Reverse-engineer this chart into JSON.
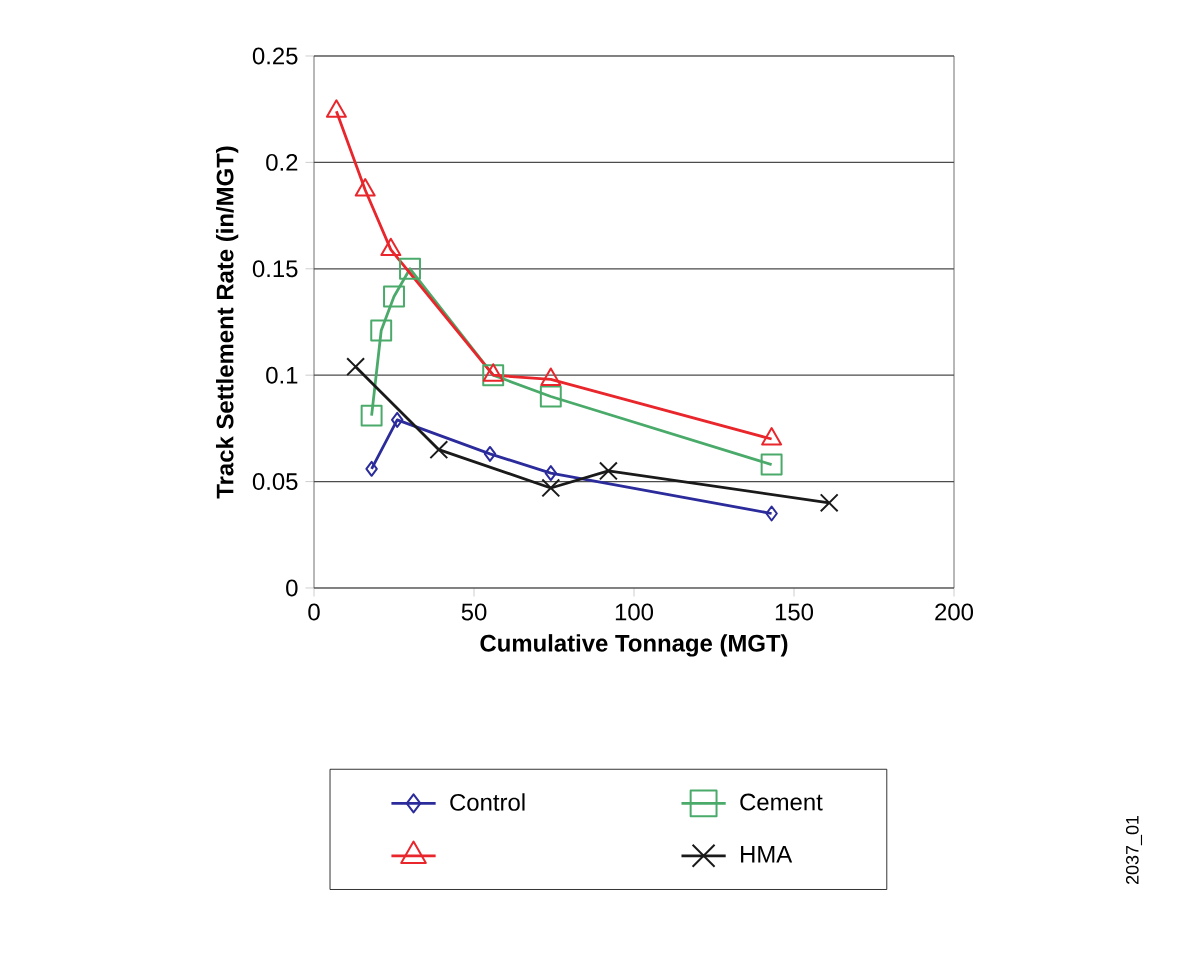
{
  "chart_data": {
    "type": "line",
    "xlabel": "Cumulative Tonnage (MGT)",
    "ylabel": "Track Settlement Rate (in/MGT)",
    "xlim": [
      0,
      200
    ],
    "xticks": [
      0,
      50,
      100,
      150,
      200
    ],
    "ylim": [
      0,
      0.25
    ],
    "yticks": [
      0,
      0.05,
      0.1,
      0.15,
      0.2,
      0.25
    ],
    "grid": "y",
    "legend": "bottom",
    "series": [
      {
        "name": "Control",
        "color": "#2b2b9b",
        "marker": "diamond",
        "x": [
          18,
          26,
          55,
          74,
          143
        ],
        "values": [
          0.056,
          0.079,
          0.063,
          0.054,
          0.035
        ]
      },
      {
        "name": "Cement",
        "color": "#4aaa6a",
        "marker": "square",
        "x": [
          18,
          21,
          25,
          30,
          56,
          74,
          143
        ],
        "values": [
          0.081,
          0.121,
          0.137,
          0.15,
          0.1,
          0.09,
          0.058
        ]
      },
      {
        "color": "#e8262b",
        "marker": "triangle",
        "x": [
          7,
          16,
          24,
          56,
          74,
          143
        ],
        "values": [
          0.224,
          0.187,
          0.159,
          0.1,
          0.098,
          0.07
        ]
      },
      {
        "name": "HMA",
        "color": "#1a1a1a",
        "marker": "cross",
        "x": [
          13,
          39,
          74,
          92,
          161
        ],
        "values": [
          0.104,
          0.065,
          0.047,
          0.055,
          0.04
        ]
      }
    ],
    "annotations": [
      "2037_01"
    ]
  }
}
